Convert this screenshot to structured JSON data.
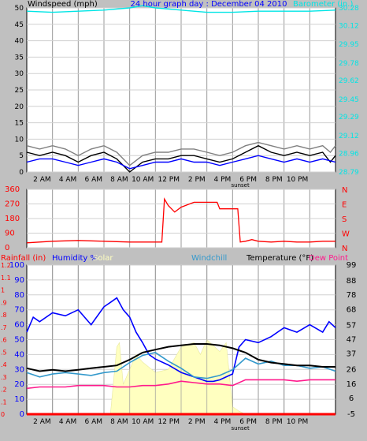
{
  "header": {
    "windspeed_label": "Windspeed (mph)",
    "title": "24 hour graph day : December 04 2010",
    "barometer_label": "Barometer (in.)"
  },
  "mid_labels": {
    "rainfall": "Rainfall (in)",
    "humidity": "Humidity %",
    "solar": "Solar",
    "windchill": "Windchill",
    "temperature": "Temperature (°F)",
    "dewpoint": "Dew Point"
  },
  "x_ticks": [
    "2 AM",
    "4 AM",
    "6 AM",
    "8 AM",
    "10 AM",
    "12 PM",
    "2 PM",
    "4 PM",
    "6 PM",
    "8 PM",
    "10 PM"
  ],
  "sunset_label": "sunset",
  "colors": {
    "background": "#c0c0c0",
    "plot_bg": "#ffffff",
    "wind": "#000000",
    "gust": "#808080",
    "wind_avg": "#0000ff",
    "barometer": "#00e5e5",
    "direction": "#ff0000",
    "humidity": "#0000ff",
    "solar": "#ffffc0",
    "windchill": "#3399cc",
    "temperature": "#000000",
    "dewpoint": "#ff1a8c",
    "rain": "#ff0000"
  },
  "chart_data": [
    {
      "type": "line",
      "x_unit": "hour of day",
      "xlim": [
        0,
        24
      ],
      "y_left": {
        "label": "Windspeed (mph)",
        "ticks": [
          0,
          5,
          10,
          15,
          20,
          25,
          30,
          35,
          40,
          45,
          50
        ],
        "lim": [
          0,
          50
        ]
      },
      "y_right": {
        "label": "Barometer (in.)",
        "ticks": [
          28.79,
          28.96,
          29.12,
          29.29,
          29.45,
          29.62,
          29.78,
          29.95,
          30.12,
          30.28
        ],
        "lim": [
          28.79,
          30.28
        ]
      },
      "series": [
        {
          "key": "wind",
          "axis": "left",
          "x": [
            0,
            1,
            2,
            3,
            4,
            5,
            6,
            7,
            7.5,
            8,
            9,
            10,
            11,
            12,
            13,
            14,
            15,
            16,
            17,
            18,
            19,
            20,
            21,
            22,
            23,
            23.6,
            24
          ],
          "values": [
            6,
            5,
            6,
            5,
            3,
            5,
            6,
            4,
            2,
            0,
            3,
            4,
            4,
            5,
            5,
            4,
            3,
            4,
            6,
            8,
            6,
            5,
            6,
            5,
            6,
            3,
            5
          ]
        },
        {
          "key": "gust",
          "axis": "left",
          "x": [
            0,
            1,
            2,
            3,
            4,
            5,
            6,
            7,
            7.5,
            8,
            9,
            10,
            11,
            12,
            13,
            14,
            15,
            16,
            17,
            18,
            19,
            20,
            21,
            22,
            23,
            23.6,
            24
          ],
          "values": [
            8,
            7,
            8,
            7,
            5,
            7,
            8,
            6,
            4,
            2,
            5,
            6,
            6,
            7,
            7,
            6,
            5,
            6,
            8,
            9,
            8,
            7,
            8,
            7,
            8,
            6,
            8
          ]
        },
        {
          "key": "wind_avg",
          "axis": "left",
          "x": [
            0,
            1,
            2,
            3,
            4,
            5,
            6,
            7,
            8,
            9,
            10,
            11,
            12,
            13,
            14,
            15,
            16,
            17,
            18,
            19,
            20,
            21,
            22,
            23,
            24
          ],
          "values": [
            3,
            4,
            4,
            3,
            2,
            3,
            4,
            3,
            1,
            2,
            3,
            3,
            4,
            3,
            3,
            2,
            3,
            4,
            5,
            4,
            3,
            4,
            3,
            4,
            3
          ]
        },
        {
          "key": "barometer",
          "axis": "right",
          "x": [
            0,
            2,
            4,
            6,
            8,
            9,
            10,
            12,
            14,
            16,
            18,
            20,
            22,
            24
          ],
          "values": [
            30.25,
            30.24,
            30.25,
            30.26,
            30.28,
            30.3,
            30.28,
            30.26,
            30.24,
            30.24,
            30.25,
            30.25,
            30.25,
            30.26
          ]
        }
      ]
    },
    {
      "type": "line",
      "x_unit": "hour of day",
      "xlim": [
        0,
        24
      ],
      "y_left": {
        "ticks": [
          0,
          90,
          180,
          270,
          360
        ],
        "lim": [
          0,
          360
        ]
      },
      "y_right": {
        "ticks": [
          "N",
          "W",
          "S",
          "E",
          "N"
        ]
      },
      "series": [
        {
          "key": "direction",
          "x": [
            0,
            1,
            2,
            4,
            6,
            8,
            9,
            10,
            10.5,
            10.7,
            11,
            11.5,
            12,
            13,
            14,
            14.8,
            15,
            16,
            16.4,
            16.6,
            17,
            17.5,
            18,
            19,
            20,
            21,
            22,
            23,
            24
          ],
          "values": [
            30,
            35,
            40,
            45,
            40,
            35,
            35,
            35,
            35,
            300,
            260,
            220,
            250,
            280,
            280,
            280,
            240,
            240,
            240,
            35,
            40,
            50,
            40,
            35,
            40,
            35,
            35,
            40,
            40
          ]
        }
      ]
    },
    {
      "type": "line",
      "x_unit": "hour of day",
      "xlim": [
        0,
        24
      ],
      "y_left_rain": {
        "label": "Rainfall (in)",
        "ticks": [
          0,
          0.1,
          0.2,
          0.3,
          0.4,
          0.5,
          0.6,
          0.7,
          0.8,
          0.9,
          1,
          1.1,
          1.2
        ]
      },
      "y_left_humidity": {
        "label": "Humidity %",
        "ticks": [
          0,
          10,
          20,
          30,
          40,
          50,
          60,
          70,
          80,
          90,
          100
        ],
        "lim": [
          0,
          100
        ]
      },
      "y_right": {
        "label": "Temperature (°F)",
        "ticks": [
          -5,
          6,
          16,
          26,
          37,
          47,
          57,
          68,
          78,
          88,
          99
        ],
        "lim": [
          -5,
          99
        ]
      },
      "series": [
        {
          "key": "humidity",
          "axis": "humidity",
          "x": [
            0,
            0.5,
            1,
            2,
            3,
            4,
            5,
            6,
            6.5,
            7,
            7.5,
            8,
            8.5,
            9,
            9.5,
            10,
            11,
            12,
            13,
            14,
            14.5,
            15,
            16,
            16.5,
            17,
            18,
            19,
            20,
            21,
            22,
            23,
            23.5,
            24
          ],
          "values": [
            55,
            65,
            62,
            68,
            66,
            70,
            60,
            72,
            75,
            78,
            70,
            65,
            55,
            48,
            40,
            37,
            33,
            28,
            25,
            22,
            22,
            23,
            27,
            45,
            50,
            48,
            52,
            58,
            55,
            60,
            55,
            62,
            58
          ]
        },
        {
          "key": "solar",
          "axis": "humidity",
          "x": [
            0,
            6.5,
            7,
            7.2,
            7.5,
            8,
            8.5,
            9,
            10,
            11,
            12,
            13,
            13.5,
            14,
            15,
            15.5,
            16,
            16.5,
            17,
            24
          ],
          "values": [
            0,
            0,
            45,
            48,
            20,
            30,
            40,
            35,
            28,
            30,
            45,
            48,
            40,
            50,
            42,
            48,
            5,
            2,
            0,
            0
          ]
        },
        {
          "key": "windchill",
          "axis": "temp",
          "x": [
            0,
            1,
            2,
            3,
            4,
            5,
            6,
            7,
            8,
            9,
            10,
            11,
            12,
            13,
            14,
            15,
            16,
            17,
            18,
            19,
            20,
            21,
            22,
            23,
            24
          ],
          "values": [
            24,
            21,
            23,
            24,
            23,
            22,
            24,
            25,
            31,
            36,
            38,
            32,
            27,
            21,
            20,
            22,
            26,
            34,
            30,
            32,
            29,
            29,
            27,
            28,
            25
          ]
        },
        {
          "key": "temperature",
          "axis": "temp",
          "x": [
            0,
            1,
            2,
            3,
            4,
            5,
            6,
            7,
            8,
            9,
            10,
            11,
            12,
            13,
            14,
            15,
            16,
            17,
            18,
            19,
            20,
            21,
            22,
            23,
            24
          ],
          "values": [
            27,
            25,
            26,
            25,
            26,
            27,
            28,
            29,
            33,
            38,
            40,
            42,
            43,
            44,
            44,
            43,
            41,
            38,
            33,
            31,
            30,
            29,
            29,
            28,
            28
          ]
        },
        {
          "key": "dewpoint",
          "axis": "temp",
          "x": [
            0,
            1,
            2,
            3,
            4,
            5,
            6,
            7,
            8,
            9,
            10,
            11,
            12,
            13,
            14,
            15,
            16,
            17,
            18,
            19,
            20,
            21,
            22,
            23,
            24
          ],
          "values": [
            13,
            14,
            14,
            14,
            15,
            15,
            15,
            14,
            14,
            15,
            15,
            16,
            18,
            17,
            16,
            16,
            15,
            19,
            19,
            19,
            19,
            18,
            19,
            19,
            19
          ]
        },
        {
          "key": "rain",
          "axis": "rain",
          "x": [
            0,
            24
          ],
          "values": [
            0,
            0
          ]
        }
      ]
    }
  ]
}
